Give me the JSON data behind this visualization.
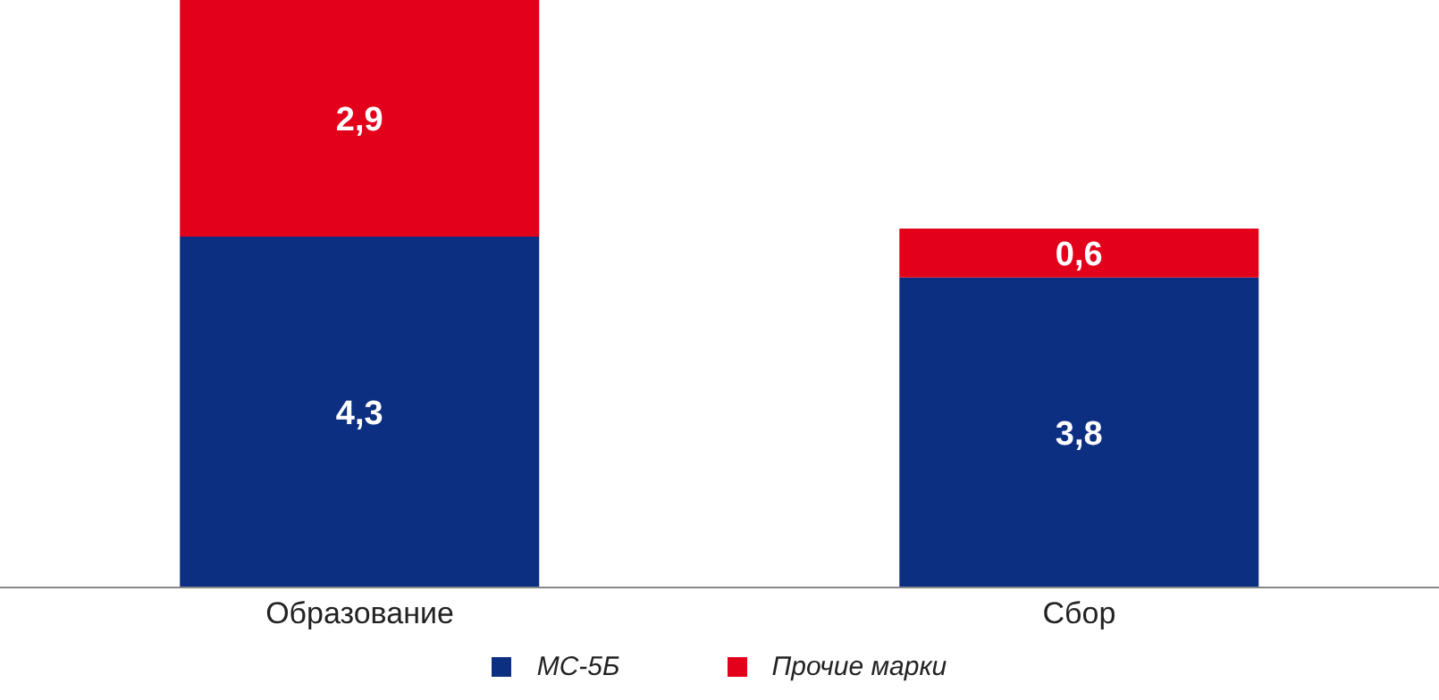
{
  "chart_data": {
    "type": "bar",
    "stacked": true,
    "categories": [
      "Образование",
      "Сбор"
    ],
    "series": [
      {
        "name": "МС-5Б",
        "color": "#0d2f82",
        "values": [
          4.3,
          3.8
        ],
        "value_labels": [
          "4,3",
          "3,8"
        ]
      },
      {
        "name": "Прочие марки",
        "color": "#e2001a",
        "values": [
          2.9,
          0.6
        ],
        "value_labels": [
          "2,9",
          "0,6"
        ]
      }
    ],
    "legend": "bottom",
    "grid": false
  }
}
